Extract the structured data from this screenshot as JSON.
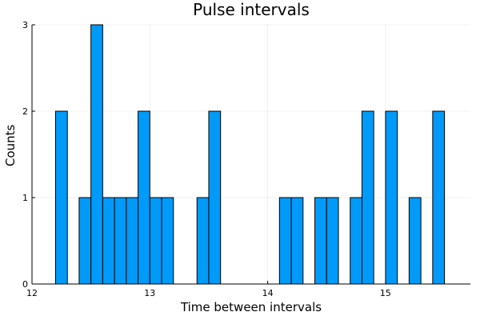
{
  "chart_data": {
    "type": "bar",
    "title": "Pulse intervals",
    "xlabel": "Time between intervals",
    "ylabel": "Counts",
    "bin_width": 0.1,
    "bins": [
      {
        "x0": 12.2,
        "x1": 12.3,
        "count": 2
      },
      {
        "x0": 12.4,
        "x1": 12.5,
        "count": 1
      },
      {
        "x0": 12.5,
        "x1": 12.6,
        "count": 3
      },
      {
        "x0": 12.6,
        "x1": 12.7,
        "count": 1
      },
      {
        "x0": 12.7,
        "x1": 12.8,
        "count": 1
      },
      {
        "x0": 12.8,
        "x1": 12.9,
        "count": 1
      },
      {
        "x0": 12.9,
        "x1": 13.0,
        "count": 2
      },
      {
        "x0": 13.0,
        "x1": 13.1,
        "count": 1
      },
      {
        "x0": 13.1,
        "x1": 13.2,
        "count": 1
      },
      {
        "x0": 13.4,
        "x1": 13.5,
        "count": 1
      },
      {
        "x0": 13.5,
        "x1": 13.6,
        "count": 2
      },
      {
        "x0": 14.1,
        "x1": 14.2,
        "count": 1
      },
      {
        "x0": 14.2,
        "x1": 14.3,
        "count": 1
      },
      {
        "x0": 14.4,
        "x1": 14.5,
        "count": 1
      },
      {
        "x0": 14.5,
        "x1": 14.6,
        "count": 1
      },
      {
        "x0": 14.7,
        "x1": 14.8,
        "count": 1
      },
      {
        "x0": 14.8,
        "x1": 14.9,
        "count": 2
      },
      {
        "x0": 15.0,
        "x1": 15.1,
        "count": 2
      },
      {
        "x0": 15.2,
        "x1": 15.3,
        "count": 1
      },
      {
        "x0": 15.4,
        "x1": 15.5,
        "count": 2
      }
    ],
    "xlim": [
      12,
      15.72
    ],
    "ylim": [
      0,
      3
    ],
    "xticks": [
      12,
      13,
      14,
      15
    ],
    "yticks": [
      0,
      1,
      2,
      3
    ],
    "grid": true,
    "legend": "none",
    "bar_color": "#009AF9",
    "edge_color": "#000000"
  }
}
